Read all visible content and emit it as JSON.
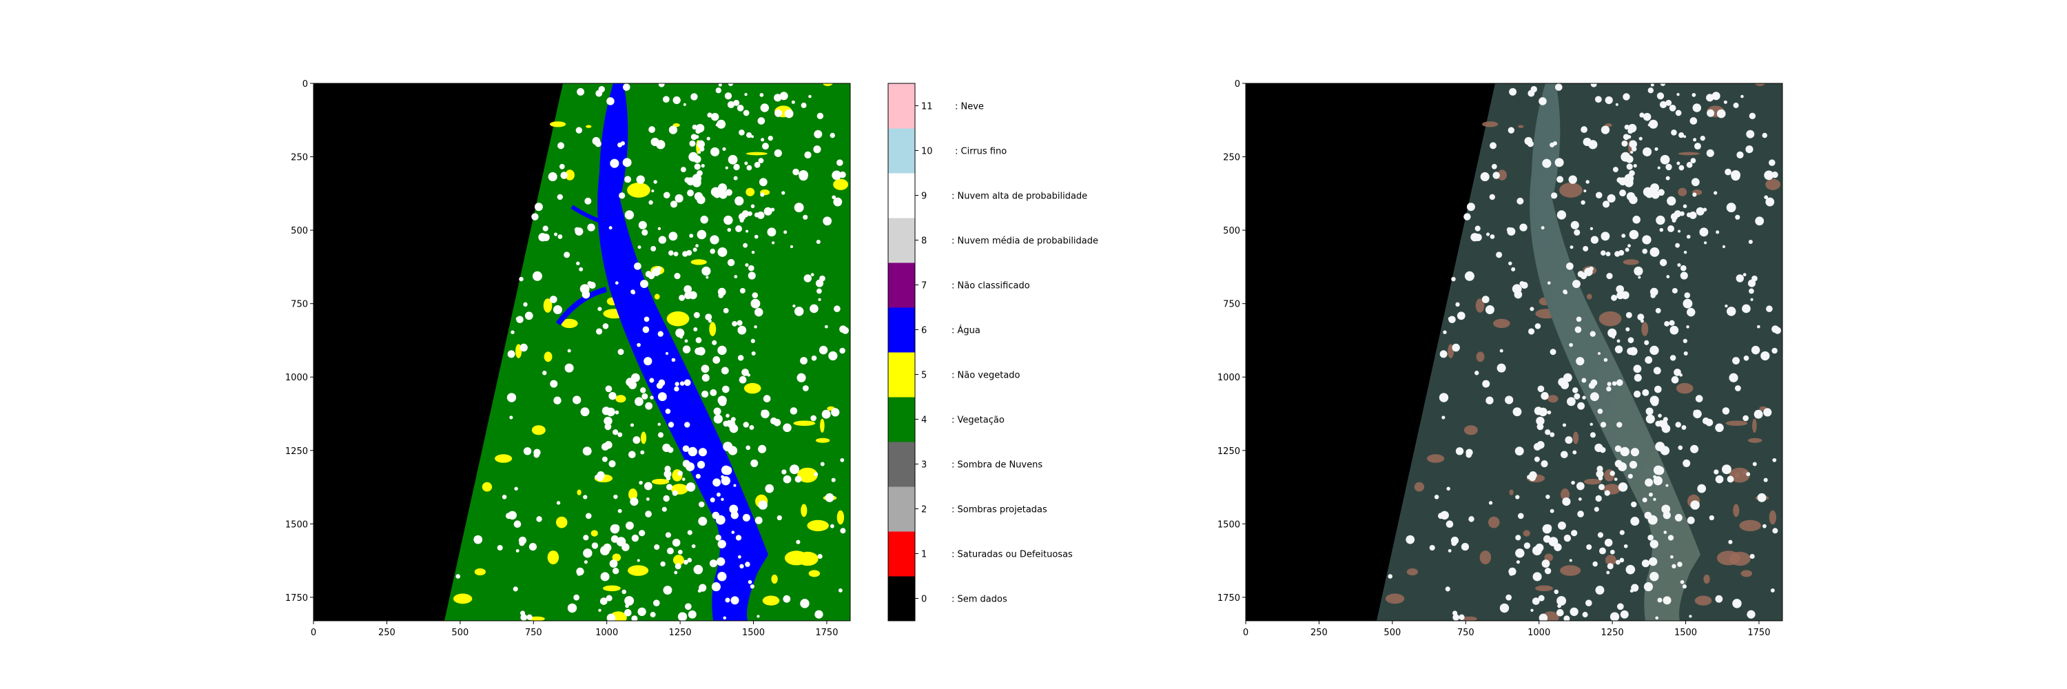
{
  "left_map": {
    "x_ticks": [
      "0",
      "250",
      "500",
      "750",
      "1000",
      "1250",
      "1500",
      "1750"
    ],
    "y_ticks": [
      "0",
      "250",
      "500",
      "750",
      "1000",
      "1250",
      "1500",
      "1750"
    ]
  },
  "right_image": {
    "x_ticks": [
      "0",
      "250",
      "500",
      "750",
      "1000",
      "1250",
      "1500",
      "1750"
    ],
    "y_ticks": [
      "0",
      "250",
      "500",
      "750",
      "1000",
      "1250",
      "1500",
      "1750"
    ]
  },
  "colorbar": {
    "ticks": [
      "0",
      "1",
      "2",
      "3",
      "4",
      "5",
      "6",
      "7",
      "8",
      "9",
      "10",
      "11"
    ],
    "classes": [
      {
        "label": ": Sem dados",
        "color": "#000000"
      },
      {
        "label": ": Saturadas ou Defeituosas",
        "color": "#ff0000"
      },
      {
        "label": ": Sombras projetadas",
        "color": "#a9a9a9"
      },
      {
        "label": ": Sombra de Nuvens",
        "color": "#696969"
      },
      {
        "label": ": Vegetação",
        "color": "#008000"
      },
      {
        "label": ": Não vegetado",
        "color": "#ffff00"
      },
      {
        "label": ": Água",
        "color": "#0000ff"
      },
      {
        "label": ": Não classificado",
        "color": "#800080"
      },
      {
        "label": ": Nuvem média de probabilidade",
        "color": "#d3d3d3"
      },
      {
        "label": ": Nuvem alta de probabilidade",
        "color": "#ffffff"
      },
      {
        "label": ": Cirrus fino",
        "color": "#add8e6"
      },
      {
        "label": ": Neve",
        "color": "#ffc0cb"
      }
    ]
  }
}
